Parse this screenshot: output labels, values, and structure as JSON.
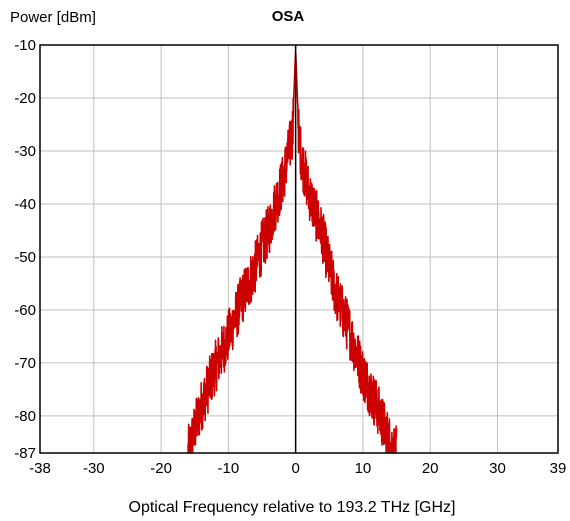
{
  "chart_data": {
    "type": "line",
    "title": "OSA",
    "ylabel": "Power [dBm]",
    "xlabel": "Optical Frequency relative to 193.2 THz [GHz]",
    "xlim": [
      -38,
      39
    ],
    "ylim": [
      -87,
      -10
    ],
    "xticks": [
      -38,
      -30,
      -20,
      -10,
      0,
      10,
      20,
      30,
      39
    ],
    "yticks": [
      -10,
      -20,
      -30,
      -40,
      -50,
      -60,
      -70,
      -80,
      -87
    ],
    "grid": true,
    "series_color": "#cc0000",
    "center_line_x": 0,
    "series": [
      {
        "x": [
          -16,
          -14,
          -12,
          -10,
          -8,
          -6,
          -5,
          -4,
          -3,
          -2,
          -1.5,
          -1,
          -0.5,
          0,
          0.5,
          1,
          1.5,
          2,
          3,
          4,
          5,
          6,
          8,
          10,
          12,
          14,
          15
        ],
        "y": [
          -87,
          -78,
          -71,
          -65,
          -58,
          -52,
          -48,
          -45,
          -40,
          -36,
          -33,
          -30,
          -27,
          -11,
          -28,
          -32,
          -35,
          -38,
          -42,
          -46,
          -52,
          -57,
          -64,
          -72,
          -78,
          -85,
          -87
        ]
      }
    ]
  }
}
